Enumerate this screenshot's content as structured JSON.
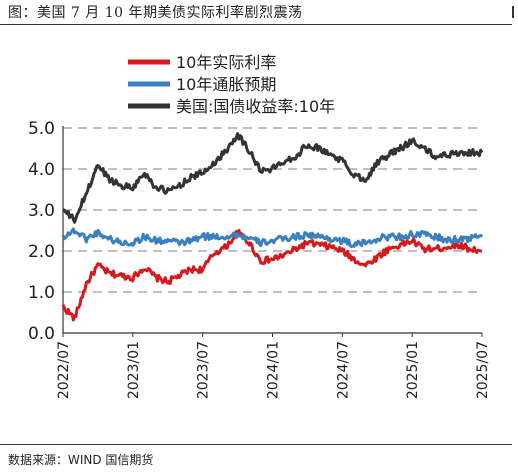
{
  "header": {
    "title": "图：美国 7 月 10 年期美债实际利率剧烈震荡"
  },
  "footer": {
    "source": "数据来源：WIND 国信期货"
  },
  "chart_data": {
    "type": "line",
    "title": "",
    "xlabel": "",
    "ylabel": "",
    "ylim": [
      0,
      5
    ],
    "yticks": [
      "0.0",
      "1.0",
      "2.0",
      "3.0",
      "4.0",
      "5.0"
    ],
    "x_tick_labels": [
      "2022/07",
      "2023/01",
      "2023/07",
      "2024/01",
      "2024/07",
      "2025/01",
      "2025/07"
    ],
    "grid": "horizontal dashed",
    "legend_position": "top-left",
    "series": [
      {
        "name": "10年实际利率",
        "color": "#d7191c",
        "points": [
          [
            "2022/07",
            0.65
          ],
          [
            "2022/08",
            0.35
          ],
          [
            "2022/09",
            1.2
          ],
          [
            "2022/10",
            1.65
          ],
          [
            "2022/11",
            1.45
          ],
          [
            "2022/12",
            1.4
          ],
          [
            "2023/01",
            1.35
          ],
          [
            "2023/02",
            1.6
          ],
          [
            "2023/03",
            1.35
          ],
          [
            "2023/04",
            1.25
          ],
          [
            "2023/05",
            1.4
          ],
          [
            "2023/06",
            1.55
          ],
          [
            "2023/07",
            1.55
          ],
          [
            "2023/08",
            1.95
          ],
          [
            "2023/09",
            2.1
          ],
          [
            "2023/10",
            2.45
          ],
          [
            "2023/11",
            2.2
          ],
          [
            "2023/12",
            1.75
          ],
          [
            "2024/01",
            1.8
          ],
          [
            "2024/02",
            1.9
          ],
          [
            "2024/03",
            2.05
          ],
          [
            "2024/04",
            2.2
          ],
          [
            "2024/05",
            2.15
          ],
          [
            "2024/06",
            2.1
          ],
          [
            "2024/07",
            2.0
          ],
          [
            "2024/08",
            1.8
          ],
          [
            "2024/09",
            1.65
          ],
          [
            "2024/10",
            1.85
          ],
          [
            "2024/11",
            2.05
          ],
          [
            "2024/12",
            2.15
          ],
          [
            "2025/01",
            2.25
          ],
          [
            "2025/02",
            2.05
          ],
          [
            "2025/03",
            2.05
          ],
          [
            "2025/04",
            2.1
          ],
          [
            "2025/05",
            2.15
          ],
          [
            "2025/06",
            2.05
          ],
          [
            "2025/07",
            2.0
          ]
        ]
      },
      {
        "name": "10年通胀预期",
        "color": "#3a7fc0",
        "points": [
          [
            "2022/07",
            2.35
          ],
          [
            "2022/08",
            2.5
          ],
          [
            "2022/09",
            2.3
          ],
          [
            "2022/10",
            2.45
          ],
          [
            "2022/11",
            2.3
          ],
          [
            "2022/12",
            2.2
          ],
          [
            "2023/01",
            2.2
          ],
          [
            "2023/02",
            2.35
          ],
          [
            "2023/03",
            2.25
          ],
          [
            "2023/04",
            2.25
          ],
          [
            "2023/05",
            2.2
          ],
          [
            "2023/06",
            2.25
          ],
          [
            "2023/07",
            2.35
          ],
          [
            "2023/08",
            2.35
          ],
          [
            "2023/09",
            2.35
          ],
          [
            "2023/10",
            2.4
          ],
          [
            "2023/11",
            2.3
          ],
          [
            "2023/12",
            2.2
          ],
          [
            "2024/01",
            2.25
          ],
          [
            "2024/02",
            2.3
          ],
          [
            "2024/03",
            2.35
          ],
          [
            "2024/04",
            2.4
          ],
          [
            "2024/05",
            2.35
          ],
          [
            "2024/06",
            2.3
          ],
          [
            "2024/07",
            2.25
          ],
          [
            "2024/08",
            2.15
          ],
          [
            "2024/09",
            2.2
          ],
          [
            "2024/10",
            2.3
          ],
          [
            "2024/11",
            2.35
          ],
          [
            "2024/12",
            2.35
          ],
          [
            "2025/01",
            2.4
          ],
          [
            "2025/02",
            2.4
          ],
          [
            "2025/03",
            2.35
          ],
          [
            "2025/04",
            2.25
          ],
          [
            "2025/05",
            2.3
          ],
          [
            "2025/06",
            2.3
          ],
          [
            "2025/07",
            2.4
          ]
        ]
      },
      {
        "name": "美国:国债收益率:10年",
        "color": "#333333",
        "points": [
          [
            "2022/07",
            3.0
          ],
          [
            "2022/08",
            2.75
          ],
          [
            "2022/09",
            3.4
          ],
          [
            "2022/10",
            4.1
          ],
          [
            "2022/11",
            3.75
          ],
          [
            "2022/12",
            3.6
          ],
          [
            "2023/01",
            3.55
          ],
          [
            "2023/02",
            3.9
          ],
          [
            "2023/03",
            3.55
          ],
          [
            "2023/04",
            3.45
          ],
          [
            "2023/05",
            3.6
          ],
          [
            "2023/06",
            3.8
          ],
          [
            "2023/07",
            3.9
          ],
          [
            "2023/08",
            4.15
          ],
          [
            "2023/09",
            4.45
          ],
          [
            "2023/10",
            4.85
          ],
          [
            "2023/11",
            4.45
          ],
          [
            "2023/12",
            3.95
          ],
          [
            "2024/01",
            4.0
          ],
          [
            "2024/02",
            4.2
          ],
          [
            "2024/03",
            4.3
          ],
          [
            "2024/04",
            4.6
          ],
          [
            "2024/05",
            4.5
          ],
          [
            "2024/06",
            4.35
          ],
          [
            "2024/07",
            4.2
          ],
          [
            "2024/08",
            3.85
          ],
          [
            "2024/09",
            3.75
          ],
          [
            "2024/10",
            4.15
          ],
          [
            "2024/11",
            4.35
          ],
          [
            "2024/12",
            4.5
          ],
          [
            "2025/01",
            4.7
          ],
          [
            "2025/02",
            4.5
          ],
          [
            "2025/03",
            4.3
          ],
          [
            "2025/04",
            4.35
          ],
          [
            "2025/05",
            4.4
          ],
          [
            "2025/06",
            4.4
          ],
          [
            "2025/07",
            4.4
          ]
        ]
      }
    ]
  }
}
